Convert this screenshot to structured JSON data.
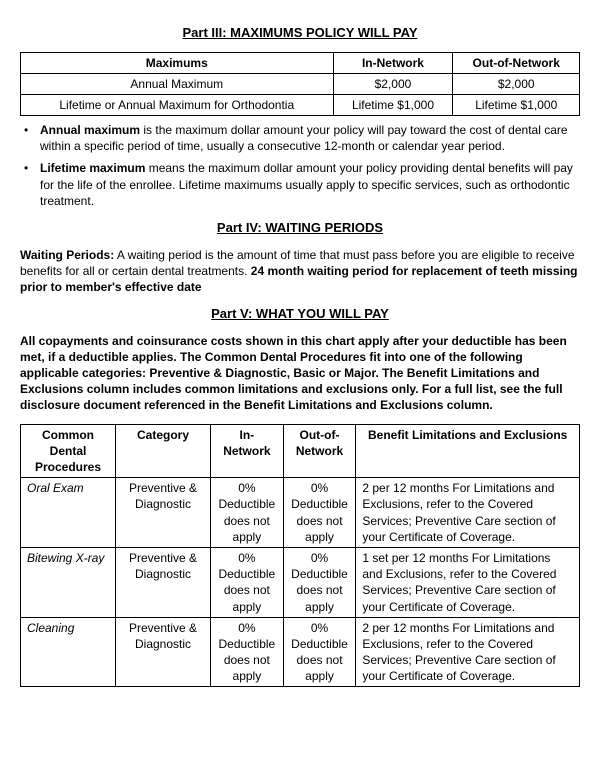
{
  "part3": {
    "title": "Part III: MAXIMUMS POLICY WILL PAY",
    "headers": {
      "c1": "Maximums",
      "c2": "In-Network",
      "c3": "Out-of-Network"
    },
    "rows": [
      {
        "label": "Annual Maximum",
        "in": "$2,000",
        "out": "$2,000"
      },
      {
        "label": "Lifetime or Annual Maximum for Orthodontia",
        "in": "Lifetime $1,000",
        "out": "Lifetime $1,000"
      }
    ],
    "bullets": [
      {
        "lead": "Annual maximum",
        "rest": " is the maximum dollar amount your policy will pay toward the cost of dental care within a specific period of time, usually a consecutive 12-month or calendar year period."
      },
      {
        "lead": "Lifetime maximum",
        "rest": " means the maximum dollar amount your policy providing dental benefits will pay for the life of the enrollee. Lifetime maximums usually apply to specific services, such as orthodontic treatment."
      }
    ]
  },
  "part4": {
    "title": "Part IV: WAITING PERIODS",
    "lead": "Waiting Periods:",
    "body": " A waiting period is the amount of time that must pass before you are eligible to receive benefits for all or certain dental treatments.  ",
    "bold_tail": "24 month waiting period for replacement of teeth missing prior to member's effective date"
  },
  "part5": {
    "title": "Part V: WHAT YOU WILL PAY",
    "intro": "All copayments and coinsurance costs shown in this chart apply after your deductible has been met, if a deductible applies. The Common Dental Procedures fit into one of the following applicable categories: Preventive & Diagnostic, Basic or Major. The Benefit Limitations and Exclusions column includes common limitations and exclusions only. For a full list, see the full disclosure document referenced in the Benefit Limitations and Exclusions column.",
    "headers": {
      "c1": "Common Dental Procedures",
      "c2": "Category",
      "c3": "In-Network",
      "c4": "Out-of-Network",
      "c5": "Benefit Limitations and Exclusions"
    },
    "rows": [
      {
        "proc": "Oral Exam",
        "cat": "Preventive & Diagnostic",
        "in": "0% Deductible does not apply",
        "out": "0% Deductible does not apply",
        "excl": "2 per 12 months\nFor Limitations and Exclusions, refer to the Covered Services; Preventive Care section of your Certificate of Coverage."
      },
      {
        "proc": "Bitewing X-ray",
        "cat": "Preventive & Diagnostic",
        "in": "0% Deductible does not apply",
        "out": "0% Deductible does not apply",
        "excl": "1 set per 12 months\nFor Limitations and Exclusions, refer to the Covered Services; Preventive Care section of your Certificate of Coverage."
      },
      {
        "proc": "Cleaning",
        "cat": "Preventive & Diagnostic",
        "in": "0% Deductible does not apply",
        "out": "0% Deductible does not apply",
        "excl": "2 per 12 months\nFor Limitations and Exclusions, refer to the Covered Services; Preventive Care section of your Certificate of Coverage."
      }
    ]
  }
}
